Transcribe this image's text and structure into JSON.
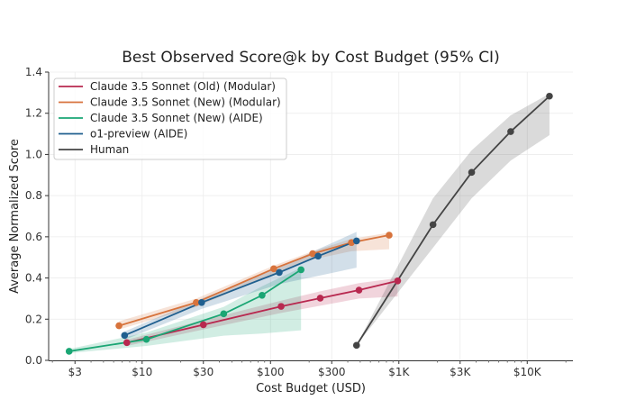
{
  "chart_data": {
    "type": "line",
    "title": "Best Observed Score@k by Cost Budget (95% CI)",
    "xlabel": "Cost Budget (USD)",
    "ylabel": "Average Normalized Score",
    "xscale": "log",
    "xlim": [
      1.87,
      22700
    ],
    "ylim": [
      0.0,
      1.4
    ],
    "x_ticks": [
      {
        "value": 3,
        "label": "$3"
      },
      {
        "value": 10,
        "label": "$10"
      },
      {
        "value": 30,
        "label": "$30"
      },
      {
        "value": 100,
        "label": "$100"
      },
      {
        "value": 300,
        "label": "$300"
      },
      {
        "value": 1000,
        "label": "$1K"
      },
      {
        "value": 3000,
        "label": "$3K"
      },
      {
        "value": 10000,
        "label": "$10K"
      }
    ],
    "y_ticks": [
      {
        "value": 0.0,
        "label": "0.0"
      },
      {
        "value": 0.2,
        "label": "0.2"
      },
      {
        "value": 0.4,
        "label": "0.4"
      },
      {
        "value": 0.6,
        "label": "0.6"
      },
      {
        "value": 0.8,
        "label": "0.8"
      },
      {
        "value": 1.0,
        "label": "1.0"
      },
      {
        "value": 1.2,
        "label": "1.2"
      },
      {
        "value": 1.4,
        "label": "1.4"
      }
    ],
    "grid": true,
    "legend_position": "top-left",
    "series": [
      {
        "name": "Claude 3.5 Sonnet (Old) (Modular)",
        "color": "#b8284f",
        "x": [
          7.6,
          30,
          121,
          244,
          489,
          979
        ],
        "y": [
          0.086,
          0.173,
          0.262,
          0.302,
          0.341,
          0.386
        ],
        "ci_low": [
          0.07,
          0.15,
          0.23,
          0.265,
          0.3,
          0.31
        ],
        "ci_high": [
          0.1,
          0.195,
          0.29,
          0.335,
          0.375,
          0.4
        ]
      },
      {
        "name": "Claude 3.5 Sonnet (New) (Modular)",
        "color": "#d7733c",
        "x": [
          6.6,
          26.4,
          106,
          213,
          427,
          840
        ],
        "y": [
          0.168,
          0.281,
          0.445,
          0.518,
          0.572,
          0.608
        ],
        "ci_low": [
          0.15,
          0.26,
          0.42,
          0.49,
          0.53,
          0.54
        ],
        "ci_high": [
          0.19,
          0.3,
          0.46,
          0.53,
          0.59,
          0.62
        ]
      },
      {
        "name": "Claude 3.5 Sonnet (New) (AIDE)",
        "color": "#1aa674",
        "x": [
          2.7,
          10.8,
          43.2,
          86,
          173
        ],
        "y": [
          0.044,
          0.102,
          0.226,
          0.316,
          0.44
        ],
        "ci_low": [
          0.035,
          0.07,
          0.12,
          0.13,
          0.146
        ],
        "ci_high": [
          0.055,
          0.135,
          0.26,
          0.36,
          0.45
        ]
      },
      {
        "name": "o1-preview (AIDE)",
        "color": "#1f5f8f",
        "x": [
          7.3,
          29.1,
          117,
          235,
          468
        ],
        "y": [
          0.121,
          0.281,
          0.427,
          0.506,
          0.58
        ],
        "ci_low": [
          0.1,
          0.25,
          0.37,
          0.41,
          0.45
        ],
        "ci_high": [
          0.14,
          0.3,
          0.45,
          0.54,
          0.624
        ]
      },
      {
        "name": "Human",
        "color": "#444444",
        "x": [
          468,
          1845,
          3690,
          7430,
          14900
        ],
        "y": [
          0.073,
          0.659,
          0.913,
          1.111,
          1.283
        ],
        "ci_low": [
          0.073,
          0.547,
          0.787,
          0.97,
          1.094
        ],
        "ci_high": [
          0.073,
          0.787,
          1.02,
          1.19,
          1.295
        ]
      }
    ]
  }
}
